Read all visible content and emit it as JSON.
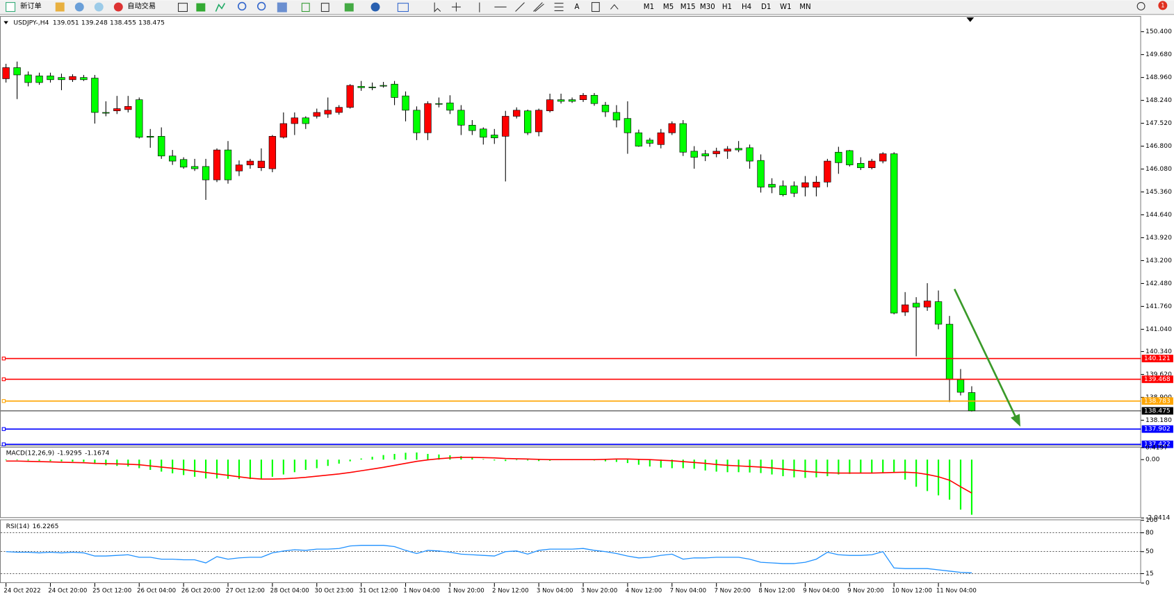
{
  "toolbar": {
    "new_order": "新订单",
    "auto_trading": "自动交易",
    "text_tool": "A",
    "timeframes": [
      "M1",
      "M5",
      "M15",
      "M30",
      "H1",
      "H4",
      "D1",
      "W1",
      "MN"
    ],
    "notifications": "1"
  },
  "chart_data": [
    {
      "type": "candlestick",
      "symbol": "USDJPY-,H4",
      "bull_color": "#ff0000",
      "bear_color": "#00ff00",
      "categories": [
        "24 Oct 2022",
        null,
        null,
        null,
        "24 Oct 20:00",
        null,
        null,
        null,
        "25 Oct 12:00",
        null,
        null,
        null,
        "26 Oct 04:00",
        null,
        null,
        null,
        "26 Oct 20:00",
        null,
        null,
        null,
        "27 Oct 12:00",
        null,
        null,
        null,
        "28 Oct 04:00",
        null,
        null,
        null,
        "30 Oct 23:00",
        null,
        null,
        null,
        "31 Oct 12:00",
        null,
        null,
        null,
        "1 Nov 04:00",
        null,
        null,
        null,
        "1 Nov 20:00",
        null,
        null,
        null,
        "2 Nov 12:00",
        null,
        null,
        null,
        "3 Nov 04:00",
        null,
        null,
        null,
        "3 Nov 20:00",
        null,
        null,
        null,
        "4 Nov 12:00",
        null,
        null,
        null,
        "7 Nov 04:00",
        null,
        null,
        null,
        "7 Nov 20:00",
        null,
        null,
        null,
        "8 Nov 12:00",
        null,
        null,
        null,
        "9 Nov 04:00",
        null,
        null,
        null,
        "9 Nov 20:00",
        null,
        null,
        null,
        "10 Nov 12:00",
        null,
        null,
        null,
        "11 Nov 04:00",
        null,
        null,
        null
      ],
      "candles": [
        [
          148.92,
          149.39,
          148.8,
          149.27
        ],
        [
          149.27,
          149.46,
          148.28,
          149.04
        ],
        [
          149.04,
          149.15,
          148.68,
          148.8
        ],
        [
          149.01,
          149.11,
          148.73,
          148.8
        ],
        [
          149.01,
          149.11,
          148.8,
          148.89
        ],
        [
          148.96,
          149.08,
          148.56,
          148.89
        ],
        [
          148.89,
          149.06,
          148.82,
          148.99
        ],
        [
          148.96,
          149.04,
          148.85,
          148.89
        ],
        [
          148.94,
          149.04,
          147.51,
          147.86
        ],
        [
          147.86,
          148.21,
          147.74,
          147.84
        ],
        [
          147.91,
          148.38,
          147.81,
          147.98
        ],
        [
          147.95,
          148.38,
          147.86,
          148.05
        ],
        [
          148.26,
          148.33,
          147.04,
          147.08
        ],
        [
          147.11,
          147.34,
          146.75,
          147.08
        ],
        [
          147.11,
          147.39,
          146.4,
          146.49
        ],
        [
          146.49,
          146.68,
          146.21,
          146.33
        ],
        [
          146.38,
          146.45,
          146.09,
          146.14
        ],
        [
          146.16,
          146.4,
          146.02,
          146.09
        ],
        [
          146.16,
          146.4,
          145.11,
          145.74
        ],
        [
          145.74,
          146.73,
          145.67,
          146.68
        ],
        [
          146.68,
          146.96,
          145.62,
          145.74
        ],
        [
          146.02,
          146.35,
          145.86,
          146.21
        ],
        [
          146.21,
          146.4,
          146.09,
          146.33
        ],
        [
          146.12,
          146.73,
          146.02,
          146.33
        ],
        [
          146.09,
          147.15,
          145.98,
          147.11
        ],
        [
          147.08,
          147.86,
          147.04,
          147.51
        ],
        [
          147.51,
          147.86,
          147.15,
          147.69
        ],
        [
          147.69,
          147.74,
          147.34,
          147.51
        ],
        [
          147.74,
          147.98,
          147.67,
          147.86
        ],
        [
          147.81,
          148.33,
          147.69,
          147.93
        ],
        [
          147.86,
          148.09,
          147.79,
          148.02
        ],
        [
          148.02,
          148.75,
          147.98,
          148.71
        ],
        [
          148.68,
          148.85,
          148.54,
          148.64
        ],
        [
          148.66,
          148.8,
          148.56,
          148.64
        ],
        [
          148.71,
          148.82,
          148.64,
          148.69
        ],
        [
          148.75,
          148.85,
          148.09,
          148.33
        ],
        [
          148.38,
          148.52,
          147.58,
          147.93
        ],
        [
          147.93,
          148.05,
          146.99,
          147.22
        ],
        [
          147.22,
          148.21,
          146.99,
          148.14
        ],
        [
          148.14,
          148.33,
          148.02,
          148.12
        ],
        [
          148.16,
          148.4,
          147.81,
          147.93
        ],
        [
          147.93,
          148.09,
          147.15,
          147.46
        ],
        [
          147.46,
          147.62,
          147.15,
          147.29
        ],
        [
          147.34,
          147.39,
          146.85,
          147.08
        ],
        [
          147.15,
          147.34,
          146.87,
          147.06
        ],
        [
          147.11,
          147.91,
          145.69,
          147.74
        ],
        [
          147.74,
          148.02,
          147.67,
          147.93
        ],
        [
          147.91,
          147.95,
          147.15,
          147.22
        ],
        [
          147.25,
          147.98,
          147.11,
          147.93
        ],
        [
          147.91,
          148.45,
          147.86,
          148.26
        ],
        [
          148.26,
          148.45,
          148.14,
          148.21
        ],
        [
          148.26,
          148.33,
          148.16,
          148.21
        ],
        [
          148.26,
          148.47,
          148.19,
          148.4
        ],
        [
          148.4,
          148.47,
          148.07,
          148.14
        ],
        [
          148.09,
          148.19,
          147.72,
          147.88
        ],
        [
          147.86,
          148.09,
          147.39,
          147.62
        ],
        [
          147.67,
          148.21,
          146.56,
          147.22
        ],
        [
          147.22,
          147.32,
          146.78,
          146.8
        ],
        [
          146.99,
          147.06,
          146.78,
          146.89
        ],
        [
          146.85,
          147.34,
          146.73,
          147.22
        ],
        [
          147.22,
          147.58,
          147.15,
          147.51
        ],
        [
          147.51,
          147.62,
          146.49,
          146.61
        ],
        [
          146.64,
          146.8,
          146.09,
          146.45
        ],
        [
          146.56,
          146.68,
          146.33,
          146.49
        ],
        [
          146.56,
          146.75,
          146.45,
          146.64
        ],
        [
          146.64,
          146.8,
          146.4,
          146.71
        ],
        [
          146.73,
          146.96,
          146.61,
          146.68
        ],
        [
          146.75,
          146.85,
          146.09,
          146.33
        ],
        [
          146.35,
          146.54,
          145.34,
          145.51
        ],
        [
          145.6,
          145.79,
          145.32,
          145.51
        ],
        [
          145.55,
          145.72,
          145.22,
          145.27
        ],
        [
          145.55,
          145.69,
          145.2,
          145.32
        ],
        [
          145.51,
          145.86,
          145.22,
          145.65
        ],
        [
          145.51,
          145.86,
          145.22,
          145.67
        ],
        [
          145.67,
          146.4,
          145.51,
          146.33
        ],
        [
          146.61,
          146.78,
          145.93,
          146.28
        ],
        [
          146.66,
          146.68,
          146.16,
          146.21
        ],
        [
          146.26,
          146.45,
          146.05,
          146.12
        ],
        [
          146.12,
          146.4,
          146.07,
          146.33
        ],
        [
          146.33,
          146.61,
          146.26,
          146.56
        ],
        [
          146.56,
          146.61,
          141.51,
          141.55
        ],
        [
          141.58,
          142.21,
          141.46,
          141.81
        ],
        [
          141.86,
          142.05,
          140.19,
          141.74
        ],
        [
          141.74,
          142.49,
          141.62,
          141.93
        ],
        [
          141.91,
          142.26,
          141.04,
          141.2
        ],
        [
          141.2,
          141.46,
          138.75,
          139.46
        ],
        [
          139.46,
          139.79,
          138.96,
          139.06
        ],
        [
          139.051,
          139.248,
          138.455,
          138.475
        ]
      ],
      "ylim": [
        137.365,
        150.871
      ],
      "yticks": [
        {
          "value": 150.4,
          "label": "150.400"
        },
        {
          "value": 149.68,
          "label": "149.680"
        },
        {
          "value": 148.96,
          "label": "148.960"
        },
        {
          "value": 148.24,
          "label": "148.240"
        },
        {
          "value": 147.52,
          "label": "147.520"
        },
        {
          "value": 146.8,
          "label": "146.800"
        },
        {
          "value": 146.08,
          "label": "146.080"
        },
        {
          "value": 145.36,
          "label": "145.360"
        },
        {
          "value": 144.64,
          "label": "144.640"
        },
        {
          "value": 143.92,
          "label": "143.920"
        },
        {
          "value": 143.2,
          "label": "143.200"
        },
        {
          "value": 142.48,
          "label": "142.480"
        },
        {
          "value": 141.76,
          "label": "141.760"
        },
        {
          "value": 141.04,
          "label": "141.040"
        },
        {
          "value": 140.34,
          "label": "140.340"
        },
        {
          "value": 139.62,
          "label": "139.620"
        },
        {
          "value": 138.9,
          "label": "138.900"
        },
        {
          "value": 138.18,
          "label": "138.180"
        }
      ],
      "levels": [
        {
          "value": 140.121,
          "color": "#ff0000"
        },
        {
          "value": 139.468,
          "color": "#ff0000"
        },
        {
          "value": 138.783,
          "color": "#ffa500"
        },
        {
          "value": 137.902,
          "color": "#0000ff"
        },
        {
          "value": 137.422,
          "color": "#0000ff"
        }
      ]
    },
    {
      "type": "macd",
      "title": "MACD(12,26,9)",
      "histogram_color": "#00ff00",
      "signal_color": "#ff0000",
      "histogram": [
        -0.02,
        -0.02,
        -0.03,
        -0.04,
        -0.05,
        -0.06,
        -0.07,
        -0.08,
        -0.15,
        -0.2,
        -0.22,
        -0.24,
        -0.3,
        -0.36,
        -0.42,
        -0.48,
        -0.54,
        -0.6,
        -0.66,
        -0.66,
        -0.67,
        -0.68,
        -0.68,
        -0.66,
        -0.6,
        -0.52,
        -0.44,
        -0.36,
        -0.3,
        -0.22,
        -0.14,
        -0.06,
        0.04,
        0.1,
        0.16,
        0.2,
        0.24,
        0.25,
        0.2,
        0.18,
        0.15,
        0.12,
        0.07,
        0.02,
        -0.03,
        -0.05,
        -0.02,
        -0.03,
        -0.05,
        -0.04,
        -0.02,
        -0.02,
        -0.02,
        -0.03,
        -0.06,
        -0.08,
        -0.12,
        -0.18,
        -0.24,
        -0.28,
        -0.3,
        -0.3,
        -0.32,
        -0.38,
        -0.42,
        -0.44,
        -0.44,
        -0.45,
        -0.47,
        -0.52,
        -0.58,
        -0.62,
        -0.64,
        -0.62,
        -0.58,
        -0.52,
        -0.5,
        -0.48,
        -0.47,
        -0.46,
        -0.44,
        -0.7,
        -0.95,
        -1.1,
        -1.25,
        -1.4,
        -1.75,
        -1.9295
      ],
      "signal": [
        -0.05,
        -0.05,
        -0.06,
        -0.07,
        -0.08,
        -0.09,
        -0.1,
        -0.11,
        -0.13,
        -0.14,
        -0.15,
        -0.16,
        -0.18,
        -0.22,
        -0.26,
        -0.3,
        -0.35,
        -0.4,
        -0.45,
        -0.5,
        -0.55,
        -0.6,
        -0.65,
        -0.68,
        -0.68,
        -0.67,
        -0.65,
        -0.62,
        -0.58,
        -0.54,
        -0.5,
        -0.45,
        -0.39,
        -0.33,
        -0.27,
        -0.2,
        -0.13,
        -0.06,
        -0.01,
        0.03,
        0.06,
        0.08,
        0.08,
        0.07,
        0.06,
        0.04,
        0.03,
        0.02,
        0.01,
        0,
        0,
        0,
        0,
        0,
        0.01,
        0.02,
        0.02,
        0.01,
        0,
        -0.02,
        -0.04,
        -0.07,
        -0.1,
        -0.13,
        -0.17,
        -0.2,
        -0.22,
        -0.24,
        -0.26,
        -0.29,
        -0.33,
        -0.37,
        -0.41,
        -0.44,
        -0.46,
        -0.47,
        -0.47,
        -0.47,
        -0.47,
        -0.46,
        -0.45,
        -0.44,
        -0.46,
        -0.52,
        -0.6,
        -0.72,
        -0.95,
        -1.1674
      ],
      "ylim": [
        -2.0414,
        0.4197
      ],
      "yticks": [
        0.4197,
        {
          "value": 0,
          "label": "0.00"
        },
        -2.0414
      ]
    },
    {
      "type": "rsi",
      "title": "RSI(14)",
      "color": "#1e90ff",
      "values": [
        50,
        49,
        49,
        48,
        49,
        48,
        49,
        48,
        43,
        43,
        44,
        45,
        41,
        41,
        38,
        38,
        37,
        37,
        32,
        42,
        38,
        40,
        41,
        41,
        48,
        51,
        53,
        52,
        54,
        54,
        55,
        59,
        60,
        60,
        60,
        58,
        52,
        47,
        52,
        51,
        49,
        46,
        45,
        44,
        43,
        50,
        51,
        46,
        52,
        54,
        54,
        54,
        55,
        52,
        50,
        47,
        43,
        40,
        41,
        44,
        46,
        38,
        40,
        40,
        41,
        41,
        41,
        38,
        33,
        32,
        31,
        31,
        33,
        38,
        49,
        45,
        44,
        44,
        45,
        50,
        24,
        23,
        23,
        23,
        21,
        19,
        17,
        16.2265
      ],
      "ylim": [
        0,
        100
      ],
      "yticks": [
        100,
        80,
        50,
        15,
        0
      ]
    }
  ]
}
